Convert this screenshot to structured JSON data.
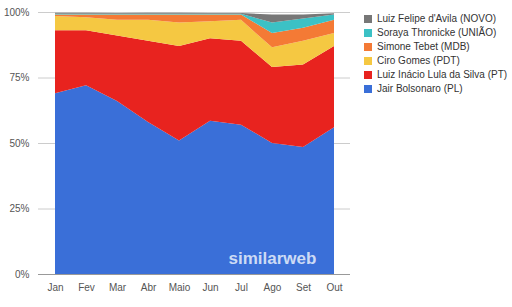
{
  "chart_data": {
    "type": "area",
    "stacked": true,
    "categories": [
      "Jan",
      "Fev",
      "Mar",
      "Abr",
      "Maio",
      "Jun",
      "Jul",
      "Ago",
      "Set",
      "Out"
    ],
    "series": [
      {
        "name": "Jair Bolsonaro (PL)",
        "color": "#3a6fd8",
        "values": [
          69,
          72,
          66,
          58,
          51,
          58.5,
          57,
          50,
          48.5,
          56
        ]
      },
      {
        "name": "Luiz Inácio Lula da Silva (PT)",
        "color": "#e8231f",
        "values": [
          24,
          21,
          25,
          31,
          36,
          31.5,
          32,
          29,
          31.5,
          31
        ]
      },
      {
        "name": "Ciro Gomes (PDT)",
        "color": "#f5c842",
        "values": [
          5.5,
          5,
          6,
          8,
          9,
          6.5,
          8,
          7.5,
          9,
          5
        ]
      },
      {
        "name": "Simone Tebet (MDB)",
        "color": "#f47a35",
        "values": [
          0.5,
          1,
          2,
          2,
          3,
          2.5,
          2,
          5.5,
          5,
          5
        ]
      },
      {
        "name": "Soraya Thronicke (UNIÃO)",
        "color": "#3cc1c5",
        "values": [
          0.3,
          0.3,
          0.3,
          0.3,
          0.3,
          0.3,
          0.3,
          4,
          3.5,
          2
        ]
      },
      {
        "name": "Luiz Felipe d'Avila (NOVO)",
        "color": "#777777",
        "values": [
          0.4,
          0.4,
          0.3,
          0.4,
          0.4,
          0.3,
          0.3,
          3,
          1.5,
          0.5
        ]
      }
    ],
    "ylim": [
      0,
      100
    ],
    "yticks": [
      {
        "value": 0,
        "label": "0%"
      },
      {
        "value": 25,
        "label": "25%"
      },
      {
        "value": 50,
        "label": "50%"
      },
      {
        "value": 75,
        "label": "75%"
      },
      {
        "value": 100,
        "label": "100%"
      }
    ],
    "grid": true,
    "legend": "right",
    "annotations": [
      "similarweb"
    ]
  }
}
